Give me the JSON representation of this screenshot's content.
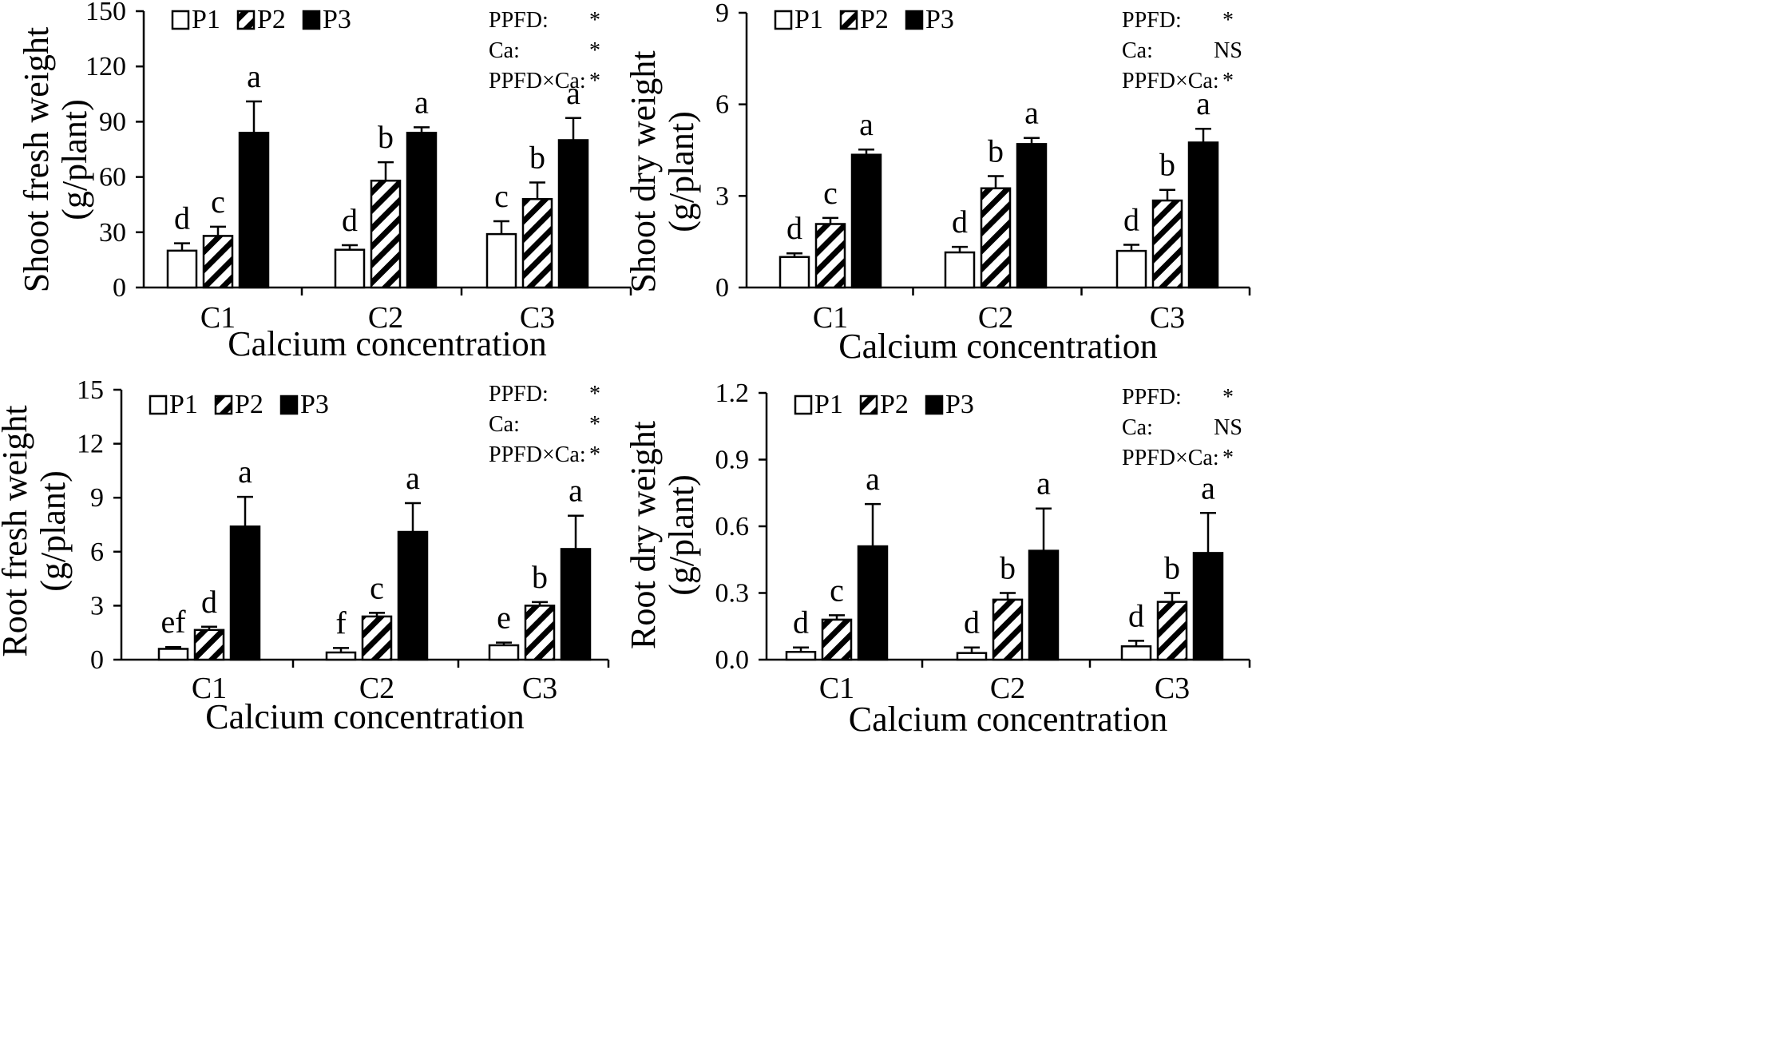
{
  "colors": {
    "P1": "#ffffff",
    "P2": "hatch",
    "P3": "#000000",
    "stroke": "#000000"
  },
  "chart_data": [
    {
      "type": "bar",
      "title": "",
      "xlabel": "Calcium concentration",
      "ylabel_line1": "Shoot fresh weight",
      "ylabel_line2": "(g/plant)",
      "categories": [
        "C1",
        "C2",
        "C3"
      ],
      "ylim": [
        0,
        150
      ],
      "yticks": [
        "0",
        "30",
        "60",
        "90",
        "120",
        "150"
      ],
      "ytick_values": [
        0,
        30,
        60,
        90,
        120,
        150
      ],
      "legend_position": "top-left",
      "series": [
        {
          "name": "P1",
          "values": [
            20,
            20.5,
            29
          ],
          "errors": [
            4,
            2.5,
            7
          ],
          "letters": [
            "d",
            "d",
            "c"
          ]
        },
        {
          "name": "P2",
          "values": [
            28,
            58,
            48
          ],
          "errors": [
            5,
            10,
            9
          ],
          "letters": [
            "c",
            "b",
            "b"
          ]
        },
        {
          "name": "P3",
          "values": [
            84,
            84,
            80
          ],
          "errors": [
            17,
            3,
            12
          ],
          "letters": [
            "a",
            "a",
            "a"
          ]
        }
      ],
      "stats": [
        {
          "label": "PPFD:",
          "value": "*"
        },
        {
          "label": "Ca:",
          "value": "*"
        },
        {
          "label": "PPFD×Ca:",
          "value": "*"
        }
      ]
    },
    {
      "type": "bar",
      "title": "",
      "xlabel": "Calcium concentration",
      "ylabel_line1": "Shoot dry weight",
      "ylabel_line2": "(g/plant)",
      "categories": [
        "C1",
        "C2",
        "C3"
      ],
      "ylim": [
        0,
        9
      ],
      "yticks": [
        "0",
        "3",
        "6",
        "9"
      ],
      "ytick_values": [
        0,
        3,
        6,
        9
      ],
      "legend_position": "top-left",
      "series": [
        {
          "name": "P1",
          "values": [
            1.0,
            1.15,
            1.2
          ],
          "errors": [
            0.12,
            0.18,
            0.2
          ],
          "letters": [
            "d",
            "d",
            "d"
          ]
        },
        {
          "name": "P2",
          "values": [
            2.08,
            3.25,
            2.85
          ],
          "errors": [
            0.2,
            0.4,
            0.35
          ],
          "letters": [
            "c",
            "b",
            "b"
          ]
        },
        {
          "name": "P3",
          "values": [
            4.35,
            4.7,
            4.75
          ],
          "errors": [
            0.17,
            0.2,
            0.45
          ],
          "letters": [
            "a",
            "a",
            "a"
          ]
        }
      ],
      "stats": [
        {
          "label": "PPFD:",
          "value": "*"
        },
        {
          "label": "Ca:",
          "value": "NS"
        },
        {
          "label": "PPFD×Ca:",
          "value": "*"
        }
      ]
    },
    {
      "type": "bar",
      "title": "",
      "xlabel": "Calcium concentration",
      "ylabel_line1": "Root fresh weight",
      "ylabel_line2": "(g/plant)",
      "categories": [
        "C1",
        "C2",
        "C3"
      ],
      "ylim": [
        0,
        15
      ],
      "yticks": [
        "0",
        "3",
        "6",
        "9",
        "12",
        "15"
      ],
      "ytick_values": [
        0,
        3,
        6,
        9,
        12,
        15
      ],
      "legend_position": "top-left",
      "series": [
        {
          "name": "P1",
          "values": [
            0.6,
            0.4,
            0.8
          ],
          "errors": [
            0.1,
            0.25,
            0.15
          ],
          "letters": [
            "ef",
            "f",
            "e"
          ]
        },
        {
          "name": "P2",
          "values": [
            1.65,
            2.4,
            3.0
          ],
          "errors": [
            0.18,
            0.2,
            0.2
          ],
          "letters": [
            "d",
            "c",
            "b"
          ]
        },
        {
          "name": "P3",
          "values": [
            7.4,
            7.1,
            6.15
          ],
          "errors": [
            1.65,
            1.6,
            1.85
          ],
          "letters": [
            "a",
            "a",
            "a"
          ]
        }
      ],
      "stats": [
        {
          "label": "PPFD:",
          "value": "*"
        },
        {
          "label": "Ca:",
          "value": "*"
        },
        {
          "label": "PPFD×Ca:",
          "value": "*"
        }
      ]
    },
    {
      "type": "bar",
      "title": "",
      "xlabel": "Calcium concentration",
      "ylabel_line1": "Root dry weight",
      "ylabel_line2": "(g/plant)",
      "categories": [
        "C1",
        "C2",
        "C3"
      ],
      "ylim": [
        0,
        1.2
      ],
      "yticks": [
        "0.0",
        "0.3",
        "0.6",
        "0.9",
        "1.2"
      ],
      "ytick_values": [
        0,
        0.3,
        0.6,
        0.9,
        1.2
      ],
      "legend_position": "top-left",
      "series": [
        {
          "name": "P1",
          "values": [
            0.035,
            0.03,
            0.06
          ],
          "errors": [
            0.02,
            0.025,
            0.025
          ],
          "letters": [
            "d",
            "d",
            "d"
          ]
        },
        {
          "name": "P2",
          "values": [
            0.18,
            0.27,
            0.26
          ],
          "errors": [
            0.02,
            0.03,
            0.04
          ],
          "letters": [
            "c",
            "b",
            "b"
          ]
        },
        {
          "name": "P3",
          "values": [
            0.51,
            0.49,
            0.48
          ],
          "errors": [
            0.19,
            0.19,
            0.18
          ],
          "letters": [
            "a",
            "a",
            "a"
          ]
        }
      ],
      "stats": [
        {
          "label": "PPFD:",
          "value": "*"
        },
        {
          "label": "Ca:",
          "value": "NS"
        },
        {
          "label": "PPFD×Ca:",
          "value": "*"
        }
      ]
    }
  ]
}
